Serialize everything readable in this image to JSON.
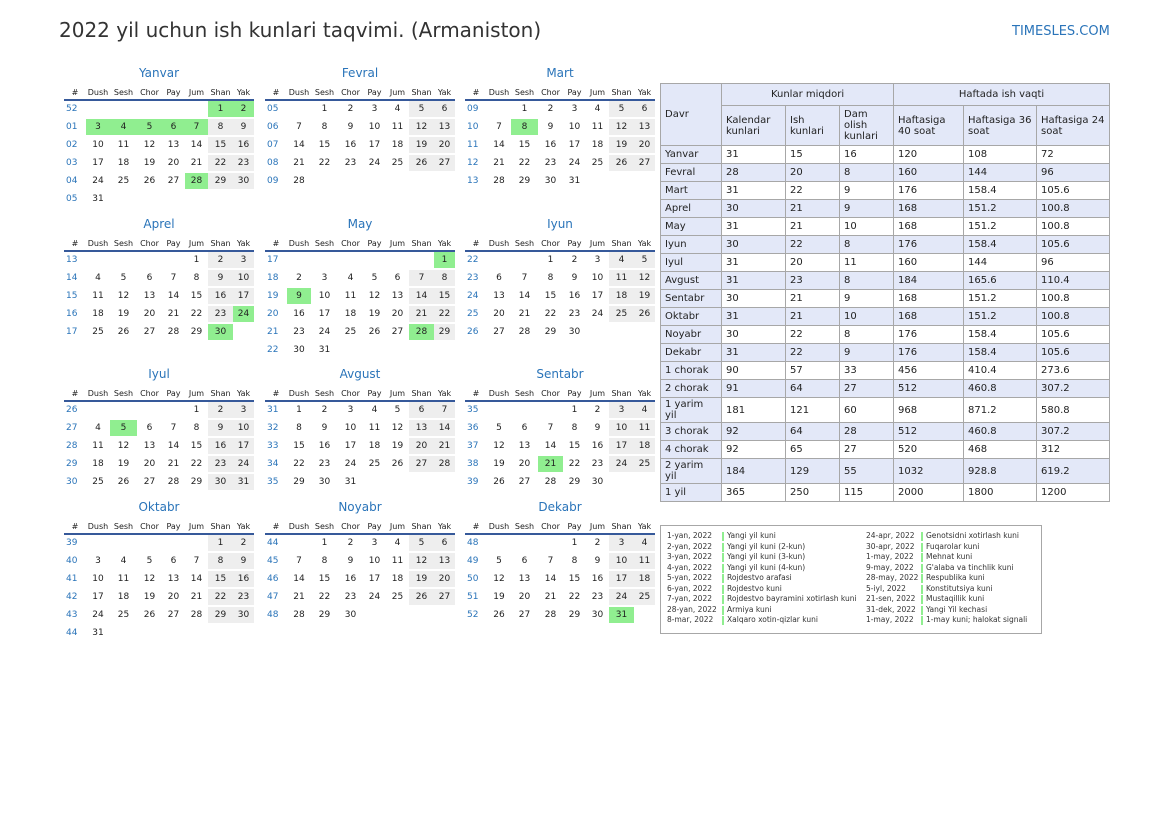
{
  "title": "2022 yil uchun ish kunlari taqvimi. (Armaniston)",
  "site": "TIMESLES.COM",
  "colors": {
    "accent": "#2a74b9",
    "holiday": "#90ee90",
    "weekend": "#eeeeee",
    "table_shade": "#e3e8f8"
  },
  "headers": [
    "#",
    "Dush",
    "Sesh",
    "Chor",
    "Pay",
    "Jum",
    "Shan",
    "Yak"
  ],
  "months": [
    {
      "name": "Yanvar",
      "rows": [
        [
          "52",
          "",
          "",
          "",
          "",
          "",
          "1",
          "2"
        ],
        [
          "01",
          "3",
          "4",
          "5",
          "6",
          "7",
          "8",
          "9"
        ],
        [
          "02",
          "10",
          "11",
          "12",
          "13",
          "14",
          "15",
          "16"
        ],
        [
          "03",
          "17",
          "18",
          "19",
          "20",
          "21",
          "22",
          "23"
        ],
        [
          "04",
          "24",
          "25",
          "26",
          "27",
          "28",
          "29",
          "30"
        ],
        [
          "05",
          "31",
          "",
          "",
          "",
          "",
          "",
          ""
        ]
      ],
      "holidays": [
        "1",
        "2",
        "3",
        "4",
        "5",
        "6",
        "7",
        "28"
      ]
    },
    {
      "name": "Fevral",
      "rows": [
        [
          "05",
          "",
          "1",
          "2",
          "3",
          "4",
          "5",
          "6"
        ],
        [
          "06",
          "7",
          "8",
          "9",
          "10",
          "11",
          "12",
          "13"
        ],
        [
          "07",
          "14",
          "15",
          "16",
          "17",
          "18",
          "19",
          "20"
        ],
        [
          "08",
          "21",
          "22",
          "23",
          "24",
          "25",
          "26",
          "27"
        ],
        [
          "09",
          "28",
          "",
          "",
          "",
          "",
          "",
          ""
        ]
      ],
      "holidays": []
    },
    {
      "name": "Mart",
      "rows": [
        [
          "09",
          "",
          "1",
          "2",
          "3",
          "4",
          "5",
          "6"
        ],
        [
          "10",
          "7",
          "8",
          "9",
          "10",
          "11",
          "12",
          "13"
        ],
        [
          "11",
          "14",
          "15",
          "16",
          "17",
          "18",
          "19",
          "20"
        ],
        [
          "12",
          "21",
          "22",
          "23",
          "24",
          "25",
          "26",
          "27"
        ],
        [
          "13",
          "28",
          "29",
          "30",
          "31",
          "",
          "",
          ""
        ]
      ],
      "holidays": [
        "8"
      ]
    },
    {
      "name": "Aprel",
      "rows": [
        [
          "13",
          "",
          "",
          "",
          "",
          "1",
          "2",
          "3"
        ],
        [
          "14",
          "4",
          "5",
          "6",
          "7",
          "8",
          "9",
          "10"
        ],
        [
          "15",
          "11",
          "12",
          "13",
          "14",
          "15",
          "16",
          "17"
        ],
        [
          "16",
          "18",
          "19",
          "20",
          "21",
          "22",
          "23",
          "24"
        ],
        [
          "17",
          "25",
          "26",
          "27",
          "28",
          "29",
          "30",
          ""
        ]
      ],
      "holidays": [
        "24",
        "30"
      ]
    },
    {
      "name": "May",
      "rows": [
        [
          "17",
          "",
          "",
          "",
          "",
          "",
          "",
          "1"
        ],
        [
          "18",
          "2",
          "3",
          "4",
          "5",
          "6",
          "7",
          "8"
        ],
        [
          "19",
          "9",
          "10",
          "11",
          "12",
          "13",
          "14",
          "15"
        ],
        [
          "20",
          "16",
          "17",
          "18",
          "19",
          "20",
          "21",
          "22"
        ],
        [
          "21",
          "23",
          "24",
          "25",
          "26",
          "27",
          "28",
          "29"
        ],
        [
          "22",
          "30",
          "31",
          "",
          "",
          "",
          "",
          ""
        ]
      ],
      "holidays": [
        "1",
        "9",
        "28"
      ]
    },
    {
      "name": "Iyun",
      "rows": [
        [
          "22",
          "",
          "",
          "1",
          "2",
          "3",
          "4",
          "5"
        ],
        [
          "23",
          "6",
          "7",
          "8",
          "9",
          "10",
          "11",
          "12"
        ],
        [
          "24",
          "13",
          "14",
          "15",
          "16",
          "17",
          "18",
          "19"
        ],
        [
          "25",
          "20",
          "21",
          "22",
          "23",
          "24",
          "25",
          "26"
        ],
        [
          "26",
          "27",
          "28",
          "29",
          "30",
          "",
          "",
          ""
        ]
      ],
      "holidays": []
    },
    {
      "name": "Iyul",
      "rows": [
        [
          "26",
          "",
          "",
          "",
          "",
          "1",
          "2",
          "3"
        ],
        [
          "27",
          "4",
          "5",
          "6",
          "7",
          "8",
          "9",
          "10"
        ],
        [
          "28",
          "11",
          "12",
          "13",
          "14",
          "15",
          "16",
          "17"
        ],
        [
          "29",
          "18",
          "19",
          "20",
          "21",
          "22",
          "23",
          "24"
        ],
        [
          "30",
          "25",
          "26",
          "27",
          "28",
          "29",
          "30",
          "31"
        ]
      ],
      "holidays": [
        "5"
      ]
    },
    {
      "name": "Avgust",
      "rows": [
        [
          "31",
          "1",
          "2",
          "3",
          "4",
          "5",
          "6",
          "7"
        ],
        [
          "32",
          "8",
          "9",
          "10",
          "11",
          "12",
          "13",
          "14"
        ],
        [
          "33",
          "15",
          "16",
          "17",
          "18",
          "19",
          "20",
          "21"
        ],
        [
          "34",
          "22",
          "23",
          "24",
          "25",
          "26",
          "27",
          "28"
        ],
        [
          "35",
          "29",
          "30",
          "31",
          "",
          "",
          "",
          ""
        ]
      ],
      "holidays": []
    },
    {
      "name": "Sentabr",
      "rows": [
        [
          "35",
          "",
          "",
          "",
          "1",
          "2",
          "3",
          "4"
        ],
        [
          "36",
          "5",
          "6",
          "7",
          "8",
          "9",
          "10",
          "11"
        ],
        [
          "37",
          "12",
          "13",
          "14",
          "15",
          "16",
          "17",
          "18"
        ],
        [
          "38",
          "19",
          "20",
          "21",
          "22",
          "23",
          "24",
          "25"
        ],
        [
          "39",
          "26",
          "27",
          "28",
          "29",
          "30",
          "",
          ""
        ]
      ],
      "holidays": [
        "21"
      ]
    },
    {
      "name": "Oktabr",
      "rows": [
        [
          "39",
          "",
          "",
          "",
          "",
          "",
          "1",
          "2"
        ],
        [
          "40",
          "3",
          "4",
          "5",
          "6",
          "7",
          "8",
          "9"
        ],
        [
          "41",
          "10",
          "11",
          "12",
          "13",
          "14",
          "15",
          "16"
        ],
        [
          "42",
          "17",
          "18",
          "19",
          "20",
          "21",
          "22",
          "23"
        ],
        [
          "43",
          "24",
          "25",
          "26",
          "27",
          "28",
          "29",
          "30"
        ],
        [
          "44",
          "31",
          "",
          "",
          "",
          "",
          "",
          ""
        ]
      ],
      "holidays": []
    },
    {
      "name": "Noyabr",
      "rows": [
        [
          "44",
          "",
          "1",
          "2",
          "3",
          "4",
          "5",
          "6"
        ],
        [
          "45",
          "7",
          "8",
          "9",
          "10",
          "11",
          "12",
          "13"
        ],
        [
          "46",
          "14",
          "15",
          "16",
          "17",
          "18",
          "19",
          "20"
        ],
        [
          "47",
          "21",
          "22",
          "23",
          "24",
          "25",
          "26",
          "27"
        ],
        [
          "48",
          "28",
          "29",
          "30",
          "",
          "",
          "",
          ""
        ]
      ],
      "holidays": []
    },
    {
      "name": "Dekabr",
      "rows": [
        [
          "48",
          "",
          "",
          "",
          "1",
          "2",
          "3",
          "4"
        ],
        [
          "49",
          "5",
          "6",
          "7",
          "8",
          "9",
          "10",
          "11"
        ],
        [
          "50",
          "12",
          "13",
          "14",
          "15",
          "16",
          "17",
          "18"
        ],
        [
          "51",
          "19",
          "20",
          "21",
          "22",
          "23",
          "24",
          "25"
        ],
        [
          "52",
          "26",
          "27",
          "28",
          "29",
          "30",
          "31",
          ""
        ]
      ],
      "holidays": [
        "31"
      ]
    }
  ],
  "stats": {
    "davr": "Davr",
    "group1": "Kunlar miqdori",
    "group2": "Haftada ish vaqti",
    "cols": [
      "Kalendar kunlari",
      "Ish kunlari",
      "Dam olish kunlari",
      "Haftasiga 40 soat",
      "Haftasiga 36 soat",
      "Haftasiga 24 soat"
    ],
    "rows": [
      [
        "Yanvar",
        "31",
        "15",
        "16",
        "120",
        "108",
        "72"
      ],
      [
        "Fevral",
        "28",
        "20",
        "8",
        "160",
        "144",
        "96"
      ],
      [
        "Mart",
        "31",
        "22",
        "9",
        "176",
        "158.4",
        "105.6"
      ],
      [
        "Aprel",
        "30",
        "21",
        "9",
        "168",
        "151.2",
        "100.8"
      ],
      [
        "May",
        "31",
        "21",
        "10",
        "168",
        "151.2",
        "100.8"
      ],
      [
        "Iyun",
        "30",
        "22",
        "8",
        "176",
        "158.4",
        "105.6"
      ],
      [
        "Iyul",
        "31",
        "20",
        "11",
        "160",
        "144",
        "96"
      ],
      [
        "Avgust",
        "31",
        "23",
        "8",
        "184",
        "165.6",
        "110.4"
      ],
      [
        "Sentabr",
        "30",
        "21",
        "9",
        "168",
        "151.2",
        "100.8"
      ],
      [
        "Oktabr",
        "31",
        "21",
        "10",
        "168",
        "151.2",
        "100.8"
      ],
      [
        "Noyabr",
        "30",
        "22",
        "8",
        "176",
        "158.4",
        "105.6"
      ],
      [
        "Dekabr",
        "31",
        "22",
        "9",
        "176",
        "158.4",
        "105.6"
      ],
      [
        "1 chorak",
        "90",
        "57",
        "33",
        "456",
        "410.4",
        "273.6"
      ],
      [
        "2 chorak",
        "91",
        "64",
        "27",
        "512",
        "460.8",
        "307.2"
      ],
      [
        "1 yarim yil",
        "181",
        "121",
        "60",
        "968",
        "871.2",
        "580.8"
      ],
      [
        "3 chorak",
        "92",
        "64",
        "28",
        "512",
        "460.8",
        "307.2"
      ],
      [
        "4 chorak",
        "92",
        "65",
        "27",
        "520",
        "468",
        "312"
      ],
      [
        "2 yarim yil",
        "184",
        "129",
        "55",
        "1032",
        "928.8",
        "619.2"
      ],
      [
        "1 yil",
        "365",
        "250",
        "115",
        "2000",
        "1800",
        "1200"
      ]
    ]
  },
  "holiday_list": [
    [
      {
        "date": "1-yan, 2022",
        "name": "Yangi yil kuni"
      },
      {
        "date": "2-yan, 2022",
        "name": "Yangi yil kuni (2-kun)"
      },
      {
        "date": "3-yan, 2022",
        "name": "Yangi yil kuni (3-kun)"
      },
      {
        "date": "4-yan, 2022",
        "name": "Yangi yil kuni (4-kun)"
      },
      {
        "date": "5-yan, 2022",
        "name": "Rojdestvo arafasi"
      },
      {
        "date": "6-yan, 2022",
        "name": "Rojdestvo kuni"
      },
      {
        "date": "7-yan, 2022",
        "name": "Rojdestvo bayramini xotirlash kuni"
      },
      {
        "date": "28-yan, 2022",
        "name": "Armiya kuni"
      },
      {
        "date": "8-mar, 2022",
        "name": "Xalqaro xotin-qizlar kuni"
      }
    ],
    [
      {
        "date": "24-apr, 2022",
        "name": "Genotsidni xotirlash kuni"
      },
      {
        "date": "30-apr, 2022",
        "name": "Fuqarolar kuni"
      },
      {
        "date": "1-may, 2022",
        "name": "Mehnat kuni"
      },
      {
        "date": "9-may, 2022",
        "name": "G'alaba va tinchlik kuni"
      },
      {
        "date": "28-may, 2022",
        "name": "Respublika kuni"
      },
      {
        "date": "5-iyl, 2022",
        "name": "Konstitutsiya kuni"
      },
      {
        "date": "21-sen, 2022",
        "name": "Mustaqillik kuni"
      },
      {
        "date": "31-dek, 2022",
        "name": "Yangi Yil kechasi"
      },
      {
        "date": "1-may, 2022",
        "name": "1-may kuni; halokat signali"
      }
    ]
  ]
}
